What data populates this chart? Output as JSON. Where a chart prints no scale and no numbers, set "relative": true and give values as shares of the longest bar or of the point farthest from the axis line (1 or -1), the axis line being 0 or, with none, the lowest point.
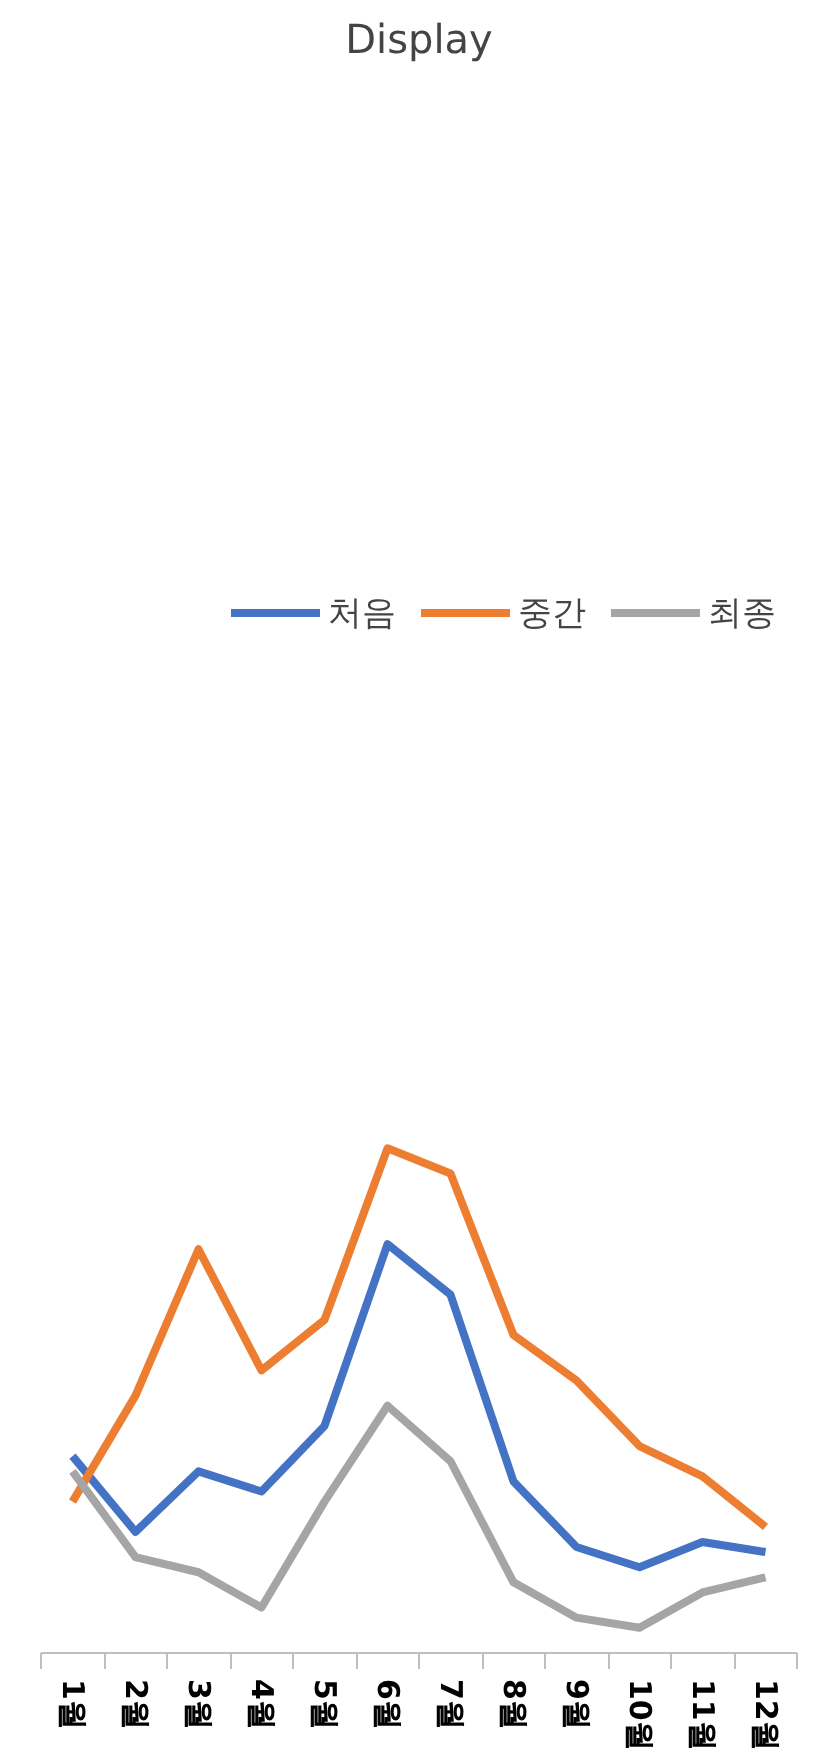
{
  "chart_data": {
    "type": "line",
    "title": "Display",
    "relative": true,
    "legend": "top",
    "categories": [
      "1월",
      "2월",
      "3월",
      "4월",
      "5월",
      "6월",
      "7월",
      "8월",
      "9월",
      "10월",
      "11월",
      "12월"
    ],
    "series": [
      {
        "name": "처음",
        "color": "#4472c4",
        "values": [
          0.39,
          0.24,
          0.36,
          0.32,
          0.45,
          0.81,
          0.71,
          0.34,
          0.21,
          0.17,
          0.22,
          0.2
        ]
      },
      {
        "name": "중간",
        "color": "#ed7d31",
        "values": [
          0.3,
          0.51,
          0.8,
          0.56,
          0.66,
          1,
          0.95,
          0.63,
          0.54,
          0.41,
          0.35,
          0.25
        ]
      },
      {
        "name": "최종",
        "color": "#a5a5a5",
        "values": [
          0.36,
          0.19,
          0.16,
          0.09,
          0.3,
          0.49,
          0.38,
          0.14,
          0.07,
          0.05,
          0.12,
          0.15
        ]
      }
    ]
  }
}
